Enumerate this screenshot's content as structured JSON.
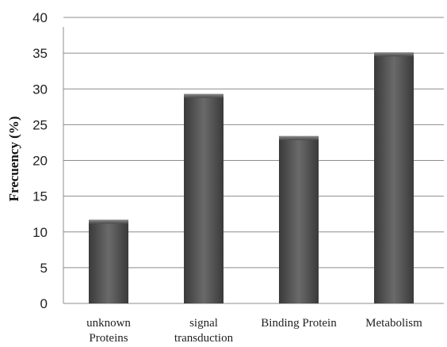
{
  "chart_data": {
    "type": "bar",
    "title": "",
    "xlabel": "",
    "ylabel": "Frecuency (%)",
    "categories": [
      [
        "unknown",
        "Proteins"
      ],
      [
        "signal",
        "transduction"
      ],
      [
        "Binding Protein"
      ],
      [
        "Metabolism"
      ]
    ],
    "values": [
      11.7,
      29.3,
      23.4,
      35.1
    ],
    "ylim": [
      0,
      40
    ],
    "yticks": [
      0,
      5,
      10,
      15,
      20,
      25,
      30,
      35,
      40
    ],
    "grid": true,
    "legend": "none",
    "bar_color": "#555555"
  }
}
